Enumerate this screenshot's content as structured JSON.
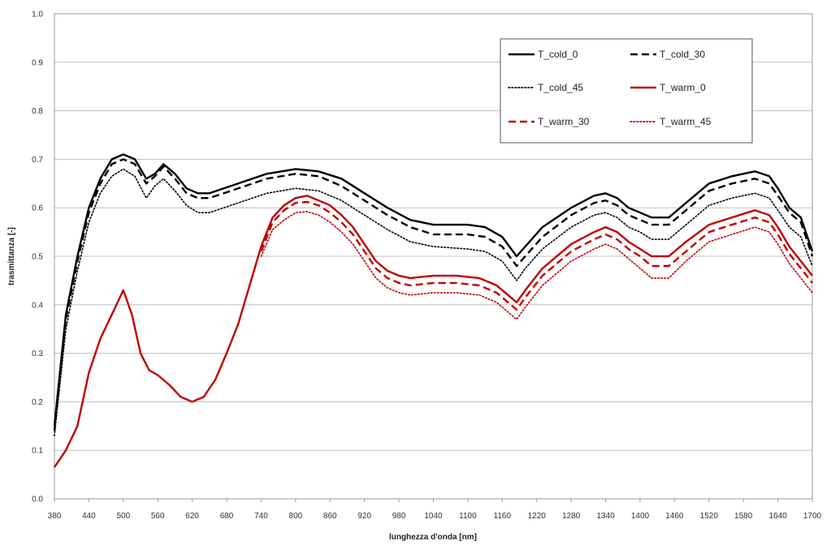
{
  "chart_data": {
    "type": "line",
    "title": "",
    "xlabel": "lunghezza d'onda  [nm]",
    "ylabel": "trasmittanza [-]",
    "xlim": [
      380,
      1700
    ],
    "ylim": [
      0.0,
      1.0
    ],
    "x_ticks": [
      "380",
      "440",
      "500",
      "560",
      "620",
      "680",
      "740",
      "800",
      "860",
      "920",
      "980",
      "1040",
      "1100",
      "1160",
      "1220",
      "1280",
      "1340",
      "1400",
      "1460",
      "1520",
      "1580",
      "1640",
      "1700"
    ],
    "y_ticks": [
      "0.0",
      "0.1",
      "0.2",
      "0.3",
      "0.4",
      "0.5",
      "0.6",
      "0.7",
      "0.8",
      "0.9",
      "1.0"
    ],
    "grid": "horizontal",
    "legend_position": "top-right",
    "series": [
      {
        "name": "T_cold_0",
        "color": "#000000",
        "style": "solid",
        "points": [
          [
            380,
            0.15
          ],
          [
            400,
            0.38
          ],
          [
            420,
            0.5
          ],
          [
            440,
            0.6
          ],
          [
            460,
            0.66
          ],
          [
            480,
            0.7
          ],
          [
            500,
            0.71
          ],
          [
            520,
            0.7
          ],
          [
            540,
            0.66
          ],
          [
            555,
            0.67
          ],
          [
            570,
            0.69
          ],
          [
            590,
            0.67
          ],
          [
            610,
            0.64
          ],
          [
            630,
            0.63
          ],
          [
            650,
            0.63
          ],
          [
            700,
            0.65
          ],
          [
            750,
            0.67
          ],
          [
            800,
            0.68
          ],
          [
            840,
            0.675
          ],
          [
            880,
            0.66
          ],
          [
            920,
            0.63
          ],
          [
            960,
            0.6
          ],
          [
            1000,
            0.575
          ],
          [
            1040,
            0.565
          ],
          [
            1100,
            0.565
          ],
          [
            1130,
            0.56
          ],
          [
            1160,
            0.54
          ],
          [
            1185,
            0.5
          ],
          [
            1200,
            0.52
          ],
          [
            1230,
            0.56
          ],
          [
            1280,
            0.6
          ],
          [
            1320,
            0.625
          ],
          [
            1340,
            0.63
          ],
          [
            1360,
            0.62
          ],
          [
            1380,
            0.6
          ],
          [
            1400,
            0.59
          ],
          [
            1420,
            0.58
          ],
          [
            1450,
            0.58
          ],
          [
            1480,
            0.61
          ],
          [
            1520,
            0.65
          ],
          [
            1560,
            0.665
          ],
          [
            1600,
            0.675
          ],
          [
            1625,
            0.665
          ],
          [
            1640,
            0.64
          ],
          [
            1660,
            0.6
          ],
          [
            1680,
            0.58
          ],
          [
            1700,
            0.51
          ]
        ]
      },
      {
        "name": "T_cold_30",
        "color": "#000000",
        "style": "dashed",
        "points": [
          [
            380,
            0.14
          ],
          [
            400,
            0.37
          ],
          [
            420,
            0.49
          ],
          [
            440,
            0.59
          ],
          [
            460,
            0.65
          ],
          [
            480,
            0.69
          ],
          [
            500,
            0.7
          ],
          [
            520,
            0.69
          ],
          [
            540,
            0.65
          ],
          [
            555,
            0.665
          ],
          [
            570,
            0.685
          ],
          [
            590,
            0.66
          ],
          [
            610,
            0.63
          ],
          [
            630,
            0.62
          ],
          [
            650,
            0.62
          ],
          [
            700,
            0.64
          ],
          [
            750,
            0.66
          ],
          [
            800,
            0.67
          ],
          [
            840,
            0.665
          ],
          [
            880,
            0.645
          ],
          [
            920,
            0.615
          ],
          [
            960,
            0.585
          ],
          [
            1000,
            0.56
          ],
          [
            1040,
            0.545
          ],
          [
            1100,
            0.545
          ],
          [
            1130,
            0.54
          ],
          [
            1160,
            0.52
          ],
          [
            1185,
            0.48
          ],
          [
            1200,
            0.5
          ],
          [
            1230,
            0.54
          ],
          [
            1280,
            0.585
          ],
          [
            1320,
            0.61
          ],
          [
            1340,
            0.615
          ],
          [
            1360,
            0.605
          ],
          [
            1380,
            0.585
          ],
          [
            1400,
            0.575
          ],
          [
            1420,
            0.565
          ],
          [
            1450,
            0.565
          ],
          [
            1480,
            0.595
          ],
          [
            1520,
            0.635
          ],
          [
            1560,
            0.65
          ],
          [
            1600,
            0.66
          ],
          [
            1625,
            0.65
          ],
          [
            1640,
            0.625
          ],
          [
            1660,
            0.59
          ],
          [
            1680,
            0.57
          ],
          [
            1700,
            0.5
          ]
        ]
      },
      {
        "name": "T_cold_45",
        "color": "#000000",
        "style": "dotted",
        "points": [
          [
            380,
            0.13
          ],
          [
            400,
            0.35
          ],
          [
            420,
            0.47
          ],
          [
            440,
            0.57
          ],
          [
            460,
            0.63
          ],
          [
            480,
            0.665
          ],
          [
            500,
            0.68
          ],
          [
            520,
            0.665
          ],
          [
            540,
            0.62
          ],
          [
            555,
            0.645
          ],
          [
            570,
            0.66
          ],
          [
            590,
            0.635
          ],
          [
            610,
            0.605
          ],
          [
            630,
            0.59
          ],
          [
            650,
            0.59
          ],
          [
            700,
            0.61
          ],
          [
            750,
            0.63
          ],
          [
            800,
            0.64
          ],
          [
            840,
            0.635
          ],
          [
            880,
            0.615
          ],
          [
            920,
            0.585
          ],
          [
            960,
            0.555
          ],
          [
            1000,
            0.53
          ],
          [
            1040,
            0.52
          ],
          [
            1100,
            0.515
          ],
          [
            1130,
            0.51
          ],
          [
            1160,
            0.49
          ],
          [
            1185,
            0.45
          ],
          [
            1200,
            0.475
          ],
          [
            1230,
            0.515
          ],
          [
            1280,
            0.56
          ],
          [
            1320,
            0.585
          ],
          [
            1340,
            0.59
          ],
          [
            1360,
            0.58
          ],
          [
            1380,
            0.56
          ],
          [
            1400,
            0.55
          ],
          [
            1420,
            0.535
          ],
          [
            1450,
            0.535
          ],
          [
            1480,
            0.565
          ],
          [
            1520,
            0.605
          ],
          [
            1560,
            0.62
          ],
          [
            1600,
            0.63
          ],
          [
            1625,
            0.62
          ],
          [
            1640,
            0.595
          ],
          [
            1660,
            0.56
          ],
          [
            1680,
            0.54
          ],
          [
            1700,
            0.48
          ]
        ]
      },
      {
        "name": "T_warm_0",
        "color": "#c00000",
        "style": "solid",
        "points": [
          [
            380,
            0.065
          ],
          [
            400,
            0.1
          ],
          [
            420,
            0.15
          ],
          [
            440,
            0.26
          ],
          [
            460,
            0.33
          ],
          [
            480,
            0.38
          ],
          [
            500,
            0.43
          ],
          [
            515,
            0.38
          ],
          [
            530,
            0.3
          ],
          [
            545,
            0.265
          ],
          [
            560,
            0.255
          ],
          [
            580,
            0.235
          ],
          [
            600,
            0.21
          ],
          [
            620,
            0.2
          ],
          [
            640,
            0.21
          ],
          [
            660,
            0.245
          ],
          [
            680,
            0.3
          ],
          [
            700,
            0.36
          ],
          [
            720,
            0.44
          ],
          [
            740,
            0.52
          ],
          [
            760,
            0.58
          ],
          [
            780,
            0.605
          ],
          [
            800,
            0.62
          ],
          [
            820,
            0.625
          ],
          [
            840,
            0.615
          ],
          [
            860,
            0.605
          ],
          [
            880,
            0.585
          ],
          [
            900,
            0.56
          ],
          [
            920,
            0.525
          ],
          [
            940,
            0.49
          ],
          [
            960,
            0.47
          ],
          [
            980,
            0.46
          ],
          [
            1000,
            0.455
          ],
          [
            1040,
            0.46
          ],
          [
            1080,
            0.46
          ],
          [
            1120,
            0.455
          ],
          [
            1150,
            0.44
          ],
          [
            1170,
            0.42
          ],
          [
            1185,
            0.405
          ],
          [
            1200,
            0.43
          ],
          [
            1230,
            0.475
          ],
          [
            1280,
            0.525
          ],
          [
            1320,
            0.55
          ],
          [
            1340,
            0.56
          ],
          [
            1360,
            0.55
          ],
          [
            1380,
            0.53
          ],
          [
            1400,
            0.515
          ],
          [
            1420,
            0.5
          ],
          [
            1450,
            0.5
          ],
          [
            1480,
            0.53
          ],
          [
            1520,
            0.565
          ],
          [
            1560,
            0.58
          ],
          [
            1600,
            0.595
          ],
          [
            1625,
            0.585
          ],
          [
            1640,
            0.56
          ],
          [
            1660,
            0.52
          ],
          [
            1680,
            0.49
          ],
          [
            1700,
            0.46
          ]
        ]
      },
      {
        "name": "T_warm_30",
        "color": "#c00000",
        "style": "dashed",
        "points": [
          [
            740,
            0.51
          ],
          [
            760,
            0.57
          ],
          [
            780,
            0.595
          ],
          [
            800,
            0.61
          ],
          [
            820,
            0.612
          ],
          [
            840,
            0.605
          ],
          [
            860,
            0.59
          ],
          [
            880,
            0.57
          ],
          [
            900,
            0.545
          ],
          [
            920,
            0.51
          ],
          [
            940,
            0.475
          ],
          [
            960,
            0.455
          ],
          [
            980,
            0.445
          ],
          [
            1000,
            0.44
          ],
          [
            1040,
            0.445
          ],
          [
            1080,
            0.445
          ],
          [
            1120,
            0.44
          ],
          [
            1150,
            0.425
          ],
          [
            1170,
            0.405
          ],
          [
            1185,
            0.39
          ],
          [
            1200,
            0.415
          ],
          [
            1230,
            0.46
          ],
          [
            1280,
            0.51
          ],
          [
            1320,
            0.535
          ],
          [
            1340,
            0.545
          ],
          [
            1360,
            0.535
          ],
          [
            1380,
            0.515
          ],
          [
            1400,
            0.5
          ],
          [
            1420,
            0.48
          ],
          [
            1450,
            0.48
          ],
          [
            1480,
            0.51
          ],
          [
            1520,
            0.55
          ],
          [
            1560,
            0.565
          ],
          [
            1600,
            0.58
          ],
          [
            1625,
            0.57
          ],
          [
            1640,
            0.545
          ],
          [
            1660,
            0.505
          ],
          [
            1680,
            0.475
          ],
          [
            1700,
            0.445
          ]
        ]
      },
      {
        "name": "T_warm_45",
        "color": "#c00000",
        "style": "dotted",
        "points": [
          [
            740,
            0.5
          ],
          [
            760,
            0.555
          ],
          [
            780,
            0.575
          ],
          [
            800,
            0.59
          ],
          [
            820,
            0.592
          ],
          [
            840,
            0.585
          ],
          [
            860,
            0.57
          ],
          [
            880,
            0.55
          ],
          [
            900,
            0.525
          ],
          [
            920,
            0.49
          ],
          [
            940,
            0.455
          ],
          [
            960,
            0.435
          ],
          [
            980,
            0.425
          ],
          [
            1000,
            0.42
          ],
          [
            1040,
            0.425
          ],
          [
            1080,
            0.425
          ],
          [
            1120,
            0.42
          ],
          [
            1150,
            0.405
          ],
          [
            1170,
            0.385
          ],
          [
            1185,
            0.37
          ],
          [
            1200,
            0.395
          ],
          [
            1230,
            0.44
          ],
          [
            1280,
            0.49
          ],
          [
            1320,
            0.515
          ],
          [
            1340,
            0.525
          ],
          [
            1360,
            0.515
          ],
          [
            1380,
            0.495
          ],
          [
            1400,
            0.475
          ],
          [
            1420,
            0.455
          ],
          [
            1450,
            0.455
          ],
          [
            1480,
            0.49
          ],
          [
            1520,
            0.53
          ],
          [
            1560,
            0.545
          ],
          [
            1600,
            0.56
          ],
          [
            1625,
            0.55
          ],
          [
            1640,
            0.525
          ],
          [
            1660,
            0.485
          ],
          [
            1680,
            0.455
          ],
          [
            1700,
            0.425
          ]
        ]
      }
    ]
  }
}
